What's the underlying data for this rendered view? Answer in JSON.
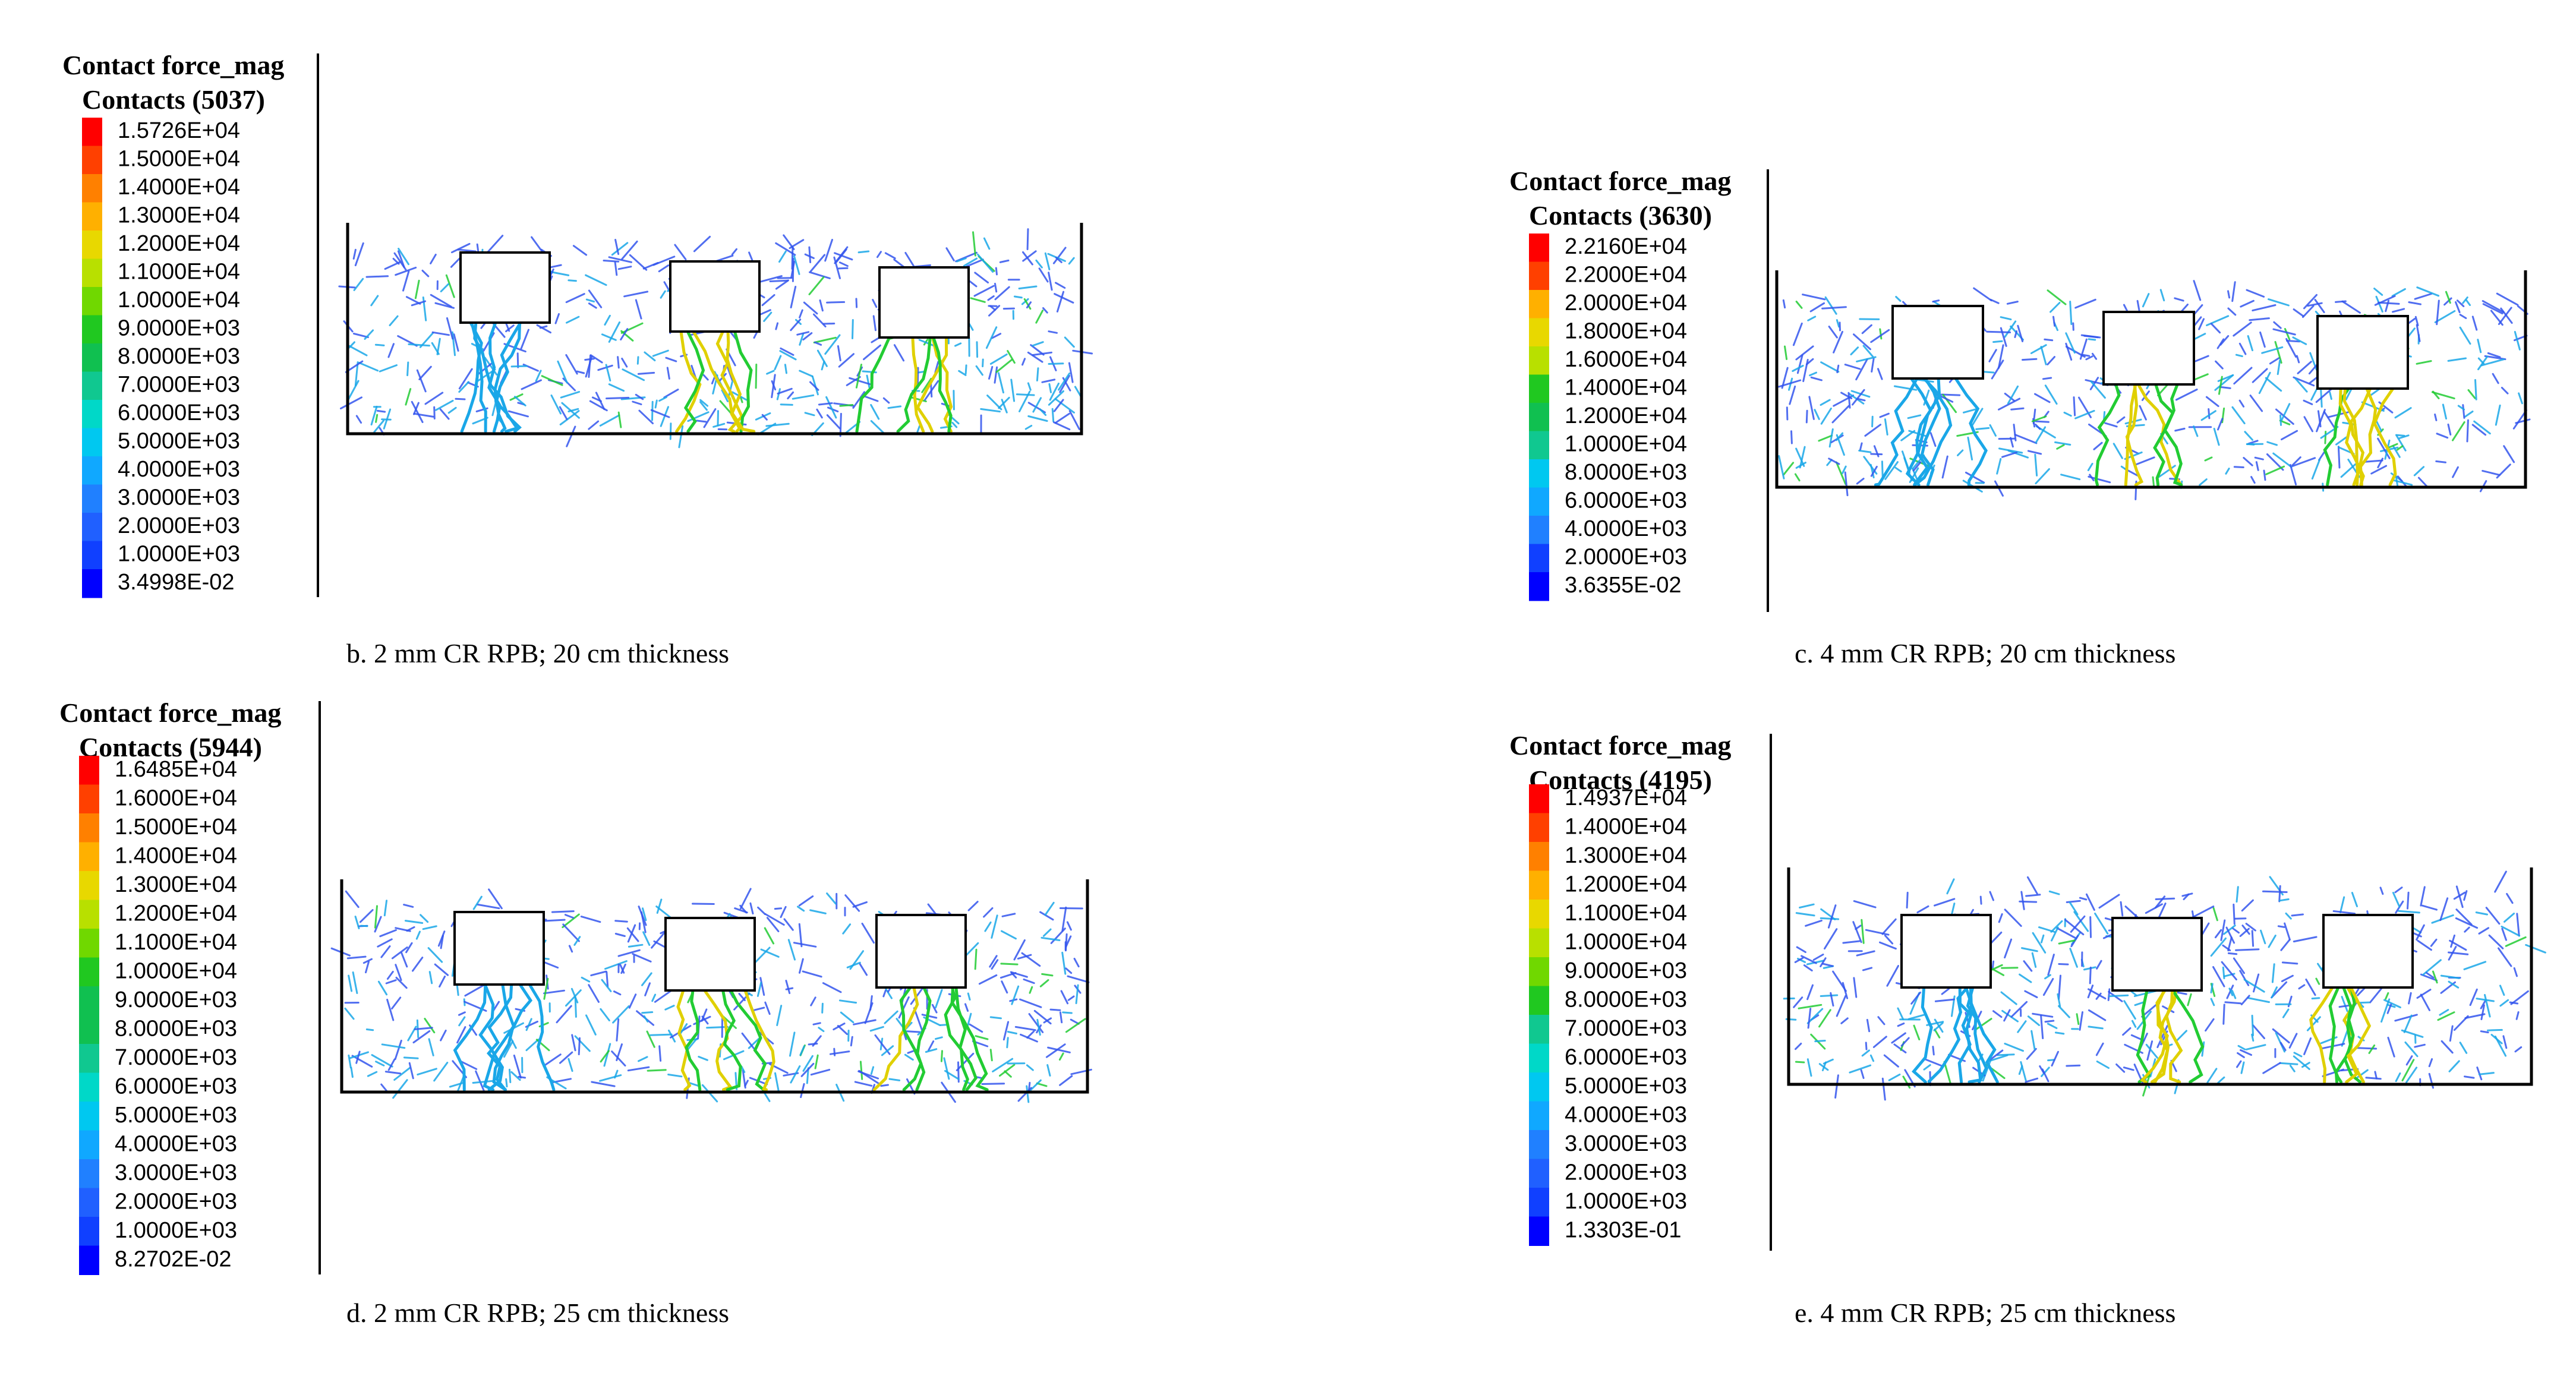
{
  "panels": [
    {
      "id": "b",
      "legend_title": "Contact force_mag",
      "legend_count": "Contacts (5037)",
      "legend_entries": [
        "1.5726E+04",
        "1.5000E+04",
        "1.4000E+04",
        "1.3000E+04",
        "1.2000E+04",
        "1.1000E+04",
        "1.0000E+04",
        "9.0000E+03",
        "8.0000E+03",
        "7.0000E+03",
        "6.0000E+03",
        "5.0000E+03",
        "4.0000E+03",
        "3.0000E+03",
        "2.0000E+03",
        "1.0000E+03",
        "3.4998E-02"
      ],
      "caption": "b. 2 mm CR RPB; 20 cm thickness"
    },
    {
      "id": "c",
      "legend_title": "Contact force_mag",
      "legend_count": "Contacts (3630)",
      "legend_entries": [
        "2.2160E+04",
        "2.2000E+04",
        "2.0000E+04",
        "1.8000E+04",
        "1.6000E+04",
        "1.4000E+04",
        "1.2000E+04",
        "1.0000E+04",
        "8.0000E+03",
        "6.0000E+03",
        "4.0000E+03",
        "2.0000E+03",
        "3.6355E-02"
      ],
      "caption": "c. 4 mm CR RPB; 20 cm thickness"
    },
    {
      "id": "d",
      "legend_title": "Contact force_mag",
      "legend_count": "Contacts (5944)",
      "legend_entries": [
        "1.6485E+04",
        "1.6000E+04",
        "1.5000E+04",
        "1.4000E+04",
        "1.3000E+04",
        "1.2000E+04",
        "1.1000E+04",
        "1.0000E+04",
        "9.0000E+03",
        "8.0000E+03",
        "7.0000E+03",
        "6.0000E+03",
        "5.0000E+03",
        "4.0000E+03",
        "3.0000E+03",
        "2.0000E+03",
        "1.0000E+03",
        "8.2702E-02"
      ],
      "caption": "d. 2 mm CR RPB; 25 cm thickness"
    },
    {
      "id": "e",
      "legend_title": "Contact force_mag",
      "legend_count": "Contacts (4195)",
      "legend_entries": [
        "1.4937E+04",
        "1.4000E+04",
        "1.3000E+04",
        "1.2000E+04",
        "1.1000E+04",
        "1.0000E+04",
        "9.0000E+03",
        "8.0000E+03",
        "7.0000E+03",
        "6.0000E+03",
        "5.0000E+03",
        "4.0000E+03",
        "3.0000E+03",
        "2.0000E+03",
        "1.0000E+03",
        "1.3303E-01"
      ],
      "caption": "e. 4 mm CR RPB; 25 cm thickness"
    }
  ],
  "colors": {
    "scale": [
      "#ff0000",
      "#ff4000",
      "#ff8000",
      "#ffb000",
      "#e8d800",
      "#b8e000",
      "#70d800",
      "#20c820",
      "#10c050",
      "#10c890",
      "#00d8c8",
      "#00c8f0",
      "#10a8ff",
      "#2080ff",
      "#2060ff",
      "#1040ff",
      "#0000ff"
    ],
    "network_low": "#3355ee",
    "network_mid": "#1aa7e8",
    "network_high": "#22cc33"
  }
}
